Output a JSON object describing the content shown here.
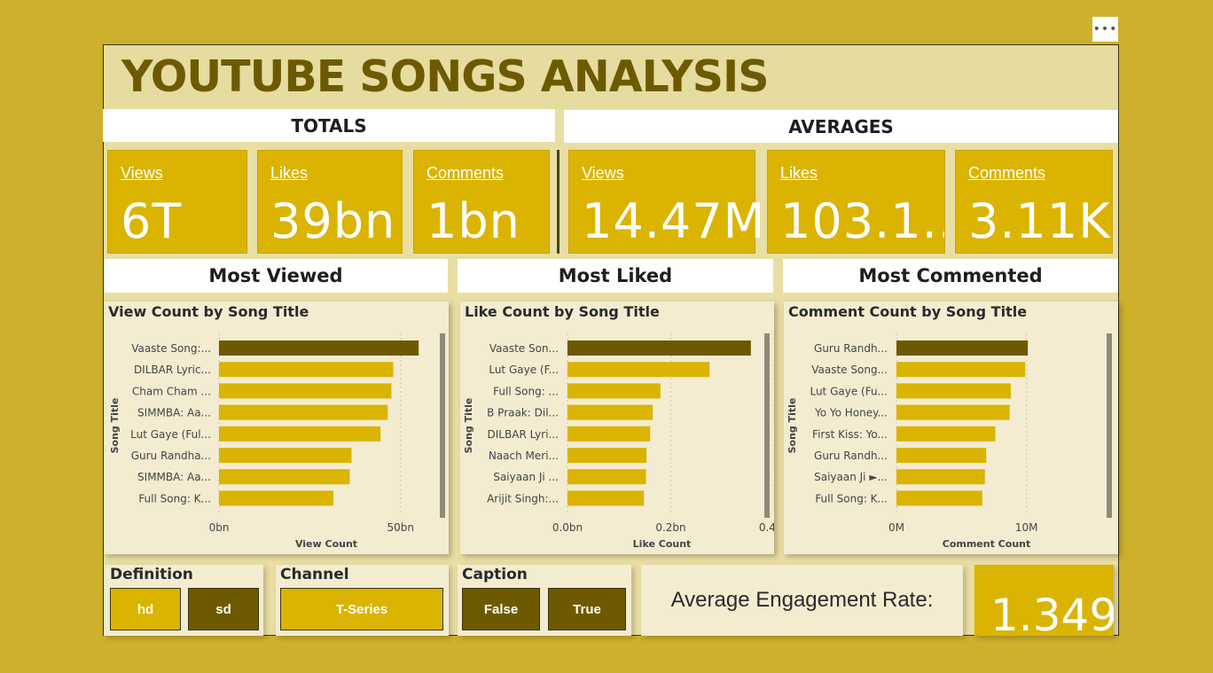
{
  "colors": {
    "background": "#cdb02c",
    "accent": "#dab400",
    "dark": "#6d5a00",
    "panel": "#f3ecd1",
    "highlight_bar": "#6d5a00",
    "bar": "#dab400"
  },
  "menu_icon": "more-options-icon",
  "menu_text": "•••",
  "title": "YOUTUBE SONGS ANALYSIS",
  "sections": {
    "totals": "TOTALS",
    "averages": "AVERAGES",
    "most_viewed": "Most Viewed",
    "most_liked": "Most Liked",
    "most_commented": "Most Commented"
  },
  "totals": [
    {
      "label": "Views",
      "value": "6T"
    },
    {
      "label": "Likes",
      "value": "39bn"
    },
    {
      "label": "Comments",
      "value": "1bn"
    }
  ],
  "averages": [
    {
      "label": "Views",
      "value": "14.47M"
    },
    {
      "label": "Likes",
      "value": "103.1..."
    },
    {
      "label": "Comments",
      "value": "3.11K"
    }
  ],
  "chart_data": [
    {
      "type": "bar",
      "title": "View Count by Song Title",
      "xlabel": "View Count",
      "ylabel": "Song Title",
      "categories": [
        "Vaaste Song:...",
        "DILBAR Lyric...",
        "Cham Cham ...",
        "SIMMBA: Aa...",
        "Lut Gaye (Ful...",
        "Guru Randha...",
        "SIMMBA: Aa...",
        "Full Song: K..."
      ],
      "values": [
        55,
        48,
        47.5,
        46.5,
        44.5,
        36.5,
        36,
        31.5
      ],
      "units": "bn",
      "ticks": [
        {
          "value": 0,
          "label": "0bn"
        },
        {
          "value": 50,
          "label": "50bn"
        }
      ],
      "xlim": [
        0,
        64
      ],
      "highlight_index": 0
    },
    {
      "type": "bar",
      "title": "Like Count by Song Title",
      "xlabel": "Like Count",
      "ylabel": "Song Title",
      "categories": [
        "Vaaste Son...",
        "Lut Gaye (F...",
        "Full Song: ...",
        "B Praak: Dil...",
        "DILBAR Lyri...",
        "Naach Meri...",
        "Saiyaan Ji ...",
        "Arijit Singh:..."
      ],
      "values": [
        0.355,
        0.275,
        0.18,
        0.165,
        0.16,
        0.153,
        0.152,
        0.148
      ],
      "units": "bn",
      "ticks": [
        {
          "value": 0,
          "label": "0.0bn"
        },
        {
          "value": 0.2,
          "label": "0.2bn"
        },
        {
          "value": 0.4,
          "label": "0.4bn"
        }
      ],
      "xlim": [
        0,
        0.4
      ],
      "highlight_index": 0
    },
    {
      "type": "bar",
      "title": "Comment Count by Song Title",
      "xlabel": "Comment Count",
      "ylabel": "Song Title",
      "categories": [
        "Guru Randh...",
        "Vaaste Song...",
        "Lut Gaye (Fu...",
        "Yo Yo Honey...",
        "First Kiss: Yo...",
        "Guru Randh...",
        "Saiyaan Ji ►...",
        "Full Song: K..."
      ],
      "values": [
        10.1,
        9.9,
        8.8,
        8.7,
        7.6,
        6.9,
        6.8,
        6.6
      ],
      "units": "M",
      "ticks": [
        {
          "value": 0,
          "label": "0M"
        },
        {
          "value": 10,
          "label": "10M"
        }
      ],
      "xlim": [
        0,
        15.2
      ],
      "highlight_index": 0
    }
  ],
  "filters": {
    "definition": {
      "label": "Definition",
      "options": [
        "hd",
        "sd"
      ],
      "selected": "hd"
    },
    "channel": {
      "label": "Channel",
      "options": [
        "T-Series"
      ],
      "selected": "T-Series"
    },
    "caption": {
      "label": "Caption",
      "options": [
        "False",
        "True"
      ],
      "selected": ""
    }
  },
  "engagement": {
    "label": "Average Engagement Rate:",
    "value": "1.349"
  }
}
